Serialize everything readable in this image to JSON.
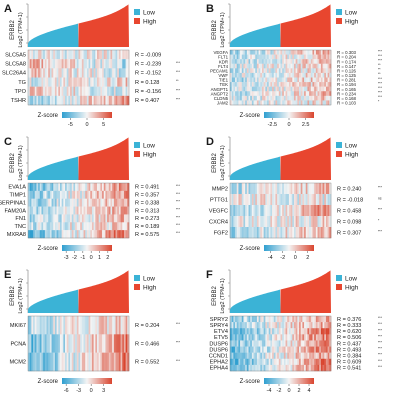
{
  "colors": {
    "low": "#3bb3d6",
    "high": "#e8462f",
    "zscore_low": "#2f9fd0",
    "zscore_mid": "#f4f4f4",
    "zscore_high": "#d9452f",
    "panel_bg": "#ffffff",
    "border": "#7a7a7a",
    "text": "#1a1a1a"
  },
  "chart_data": [
    {
      "type": "heatmap",
      "panel": "A",
      "ylabel_top": "ERBB2",
      "ylabel_bottom": "Log2 (TPM+1)",
      "legend": [
        "Low",
        "High"
      ],
      "zscore_label": "Z-score",
      "zscore_ticks": [
        "-5",
        "0",
        "5"
      ],
      "zscore_range": [
        -7.5,
        7.5
      ],
      "genes": [
        "SLC5A5",
        "SLC5A8",
        "SLC26A4",
        "TG",
        "TPO",
        "TSHR"
      ],
      "r_labels": [
        "R = -0.009",
        "R = -0.239",
        "R = -0.152",
        "R = 0.128",
        "R = -0.156",
        "R = 0.407"
      ],
      "r_values": [
        -0.009,
        -0.239,
        -0.152,
        0.128,
        -0.156,
        0.407
      ],
      "signif": [
        "",
        "***",
        "***",
        "**",
        "***",
        "***"
      ],
      "seed": 11
    },
    {
      "type": "heatmap",
      "panel": "B",
      "ylabel_top": "ERBB2",
      "ylabel_bottom": "Log2 (TPM+1)",
      "legend": [
        "Low",
        "High"
      ],
      "zscore_label": "Z-score",
      "zscore_ticks": [
        "-2.5",
        "0",
        "2.5"
      ],
      "zscore_range": [
        -3.75,
        3.75
      ],
      "genes": [
        "VEGFA",
        "FLT1",
        "KDR",
        "FLT4",
        "PECAM1",
        "VWF",
        "TIE1",
        "TEK",
        "ANGPT1",
        "ANGPT2",
        "CLDN5",
        "JAM2"
      ],
      "r_labels": [
        "R = 0.303",
        "R = 0.204",
        "R = 0.174",
        "R = 0.147",
        "R = 0.126",
        "R = 0.125",
        "R = 0.281",
        "R = 0.194",
        "R = 0.165",
        "R = 0.234",
        "R = 0.168",
        "R = 0.103"
      ],
      "r_values": [
        0.303,
        0.204,
        0.174,
        0.147,
        0.126,
        0.125,
        0.281,
        0.194,
        0.165,
        0.234,
        0.168,
        0.103
      ],
      "signif": [
        "***",
        "***",
        "***",
        "**",
        "**",
        "**",
        "***",
        "***",
        "***",
        "***",
        "***",
        "*"
      ],
      "seed": 23
    },
    {
      "type": "heatmap",
      "panel": "C",
      "ylabel_top": "ERBB2",
      "ylabel_bottom": "Log2 (TPM+1)",
      "legend": [
        "Low",
        "High"
      ],
      "zscore_label": "Z-score",
      "zscore_ticks": [
        "-3",
        "-2",
        "-1",
        "0",
        "1",
        "2"
      ],
      "zscore_range": [
        -3.5,
        2.5
      ],
      "genes": [
        "EVA1A",
        "TIMP1",
        "SERPINA1",
        "FAM20A",
        "FN1",
        "TNC",
        "MXRA8"
      ],
      "r_labels": [
        "R = 0.491",
        "R = 0.357",
        "R = 0.338",
        "R = 0.313",
        "R = 0.273",
        "R = 0.189",
        "R = 0.575"
      ],
      "r_values": [
        0.491,
        0.357,
        0.338,
        0.313,
        0.273,
        0.189,
        0.575
      ],
      "signif": [
        "***",
        "***",
        "***",
        "***",
        "***",
        "***",
        "***"
      ],
      "seed": 37
    },
    {
      "type": "heatmap",
      "panel": "D",
      "ylabel_top": "ERBB2",
      "ylabel_bottom": "Log2 (TPM+1)",
      "legend": [
        "Low",
        "High"
      ],
      "zscore_label": "Z-score",
      "zscore_ticks": [
        "-4",
        "-2",
        "0",
        "2"
      ],
      "zscore_range": [
        -5,
        3
      ],
      "genes": [
        "MMP2",
        "PTTG1",
        "VEGFC",
        "CXCR4",
        "FGF2"
      ],
      "r_labels": [
        "R = 0.240",
        "R = -0.018",
        "R = 0.458",
        "R = 0.098",
        "R = 0.307"
      ],
      "r_values": [
        0.24,
        -0.018,
        0.458,
        0.098,
        0.307
      ],
      "signif": [
        "***",
        "ns",
        "***",
        "*",
        "***"
      ],
      "seed": 41
    },
    {
      "type": "heatmap",
      "panel": "E",
      "ylabel_top": "ERBB2",
      "ylabel_bottom": "Log2 (TPM+1)",
      "legend": [
        "Low",
        "High"
      ],
      "zscore_label": "Z-score",
      "zscore_ticks": [
        "-6",
        "-3",
        "0",
        "3"
      ],
      "zscore_range": [
        -7,
        5
      ],
      "genes": [
        "MKI67",
        "PCNA",
        "MCM2"
      ],
      "r_labels": [
        "R = 0.204",
        "R = 0.466",
        "R = 0.552"
      ],
      "r_values": [
        0.204,
        0.466,
        0.552
      ],
      "signif": [
        "***",
        "***",
        "***"
      ],
      "seed": 53
    },
    {
      "type": "heatmap",
      "panel": "F",
      "ylabel_top": "ERBB2",
      "ylabel_bottom": "Log2 (TPM+1)",
      "legend": [
        "Low",
        "High"
      ],
      "zscore_label": "Z-score",
      "zscore_ticks": [
        "-4",
        "-2",
        "0",
        "2",
        "4"
      ],
      "zscore_range": [
        -5,
        5
      ],
      "genes": [
        "SPRY2",
        "SPRY4",
        "ETV4",
        "ETV5",
        "DUSP6",
        "DUSP6",
        "CCND1",
        "EPHA2",
        "EPHA4"
      ],
      "r_labels": [
        "R = 0.376",
        "R = 0.333",
        "R = 0.620",
        "R = 0.506",
        "R = 0.437",
        "R = 0.493",
        "R = 0.384",
        "R = 0.609",
        "R = 0.541"
      ],
      "r_values": [
        0.376,
        0.333,
        0.62,
        0.506,
        0.437,
        0.493,
        0.384,
        0.609,
        0.541
      ],
      "signif": [
        "***",
        "***",
        "***",
        "***",
        "***",
        "***",
        "***",
        "***",
        "***"
      ],
      "seed": 67
    }
  ]
}
